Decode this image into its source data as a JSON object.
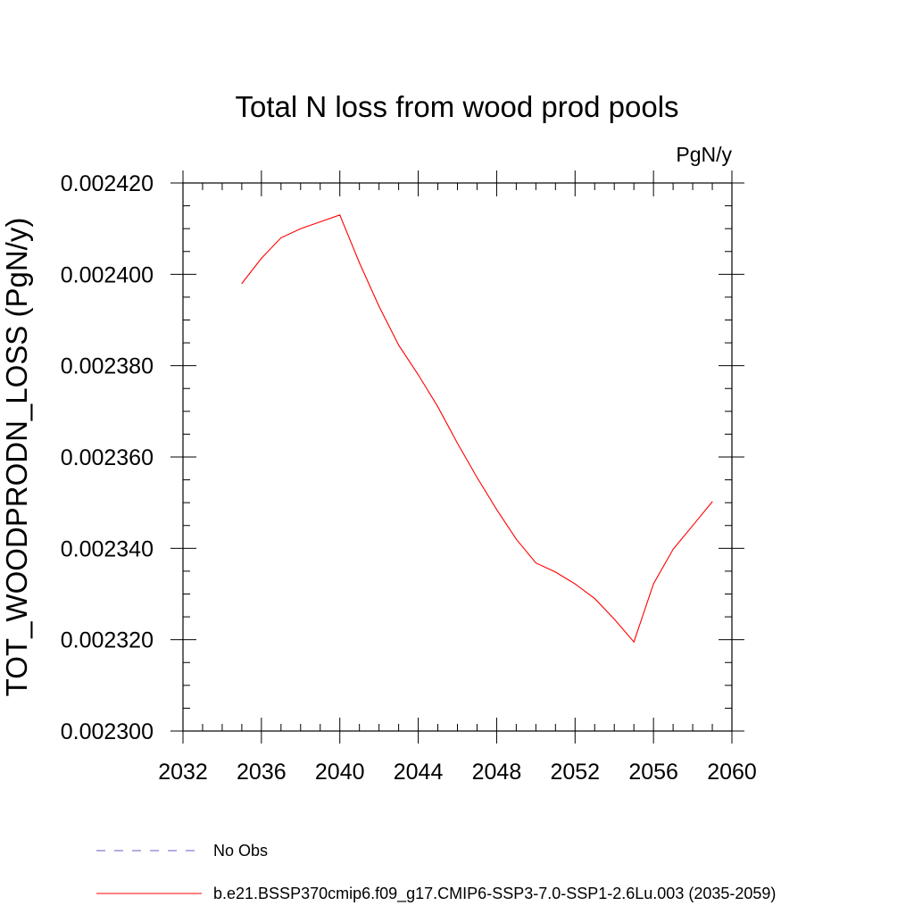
{
  "chart_data": {
    "type": "line",
    "title": "Total N loss from wood prod pools",
    "units": "PgN/y",
    "ylabel": "TOT_WOODPRODN_LOSS  (PgN/y)",
    "xlabel": "",
    "xlim": [
      2032,
      2060
    ],
    "ylim": [
      0.0023,
      0.00242
    ],
    "x_ticks": [
      2032,
      2036,
      2040,
      2044,
      2048,
      2052,
      2056,
      2060
    ],
    "y_ticks": [
      "0.002300",
      "0.002320",
      "0.002340",
      "0.002360",
      "0.002380",
      "0.002400",
      "0.002420"
    ],
    "grid": false,
    "legend_position": "bottom",
    "series": [
      {
        "name": "b.e21.BSSP370cmip6.f09_g17.CMIP6-SSP3-7.0-SSP1-2.6Lu.003 (2035-2059)",
        "color": "#ff0000",
        "style": "solid",
        "x": [
          2035,
          2036,
          2037,
          2038,
          2039,
          2040,
          2041,
          2042,
          2043,
          2044,
          2045,
          2046,
          2047,
          2048,
          2049,
          2050,
          2051,
          2052,
          2053,
          2054,
          2055,
          2056,
          2057,
          2058,
          2059
        ],
        "y": [
          0.002398,
          0.0024035,
          0.002408,
          0.00241,
          0.0024115,
          0.002413,
          0.0024025,
          0.002393,
          0.0023845,
          0.002378,
          0.002371,
          0.002363,
          0.0023555,
          0.0023485,
          0.002342,
          0.0023368,
          0.0023348,
          0.0023322,
          0.002329,
          0.0023245,
          0.0023195,
          0.0023322,
          0.0023398,
          0.002345,
          0.0023502
        ]
      }
    ],
    "legend": [
      {
        "label": "No Obs",
        "color": "#6a5acd",
        "style": "dashed"
      },
      {
        "label": "b.e21.BSSP370cmip6.f09_g17.CMIP6-SSP3-7.0-SSP1-2.6Lu.003 (2035-2059)",
        "color": "#ff0000",
        "style": "solid"
      }
    ]
  }
}
